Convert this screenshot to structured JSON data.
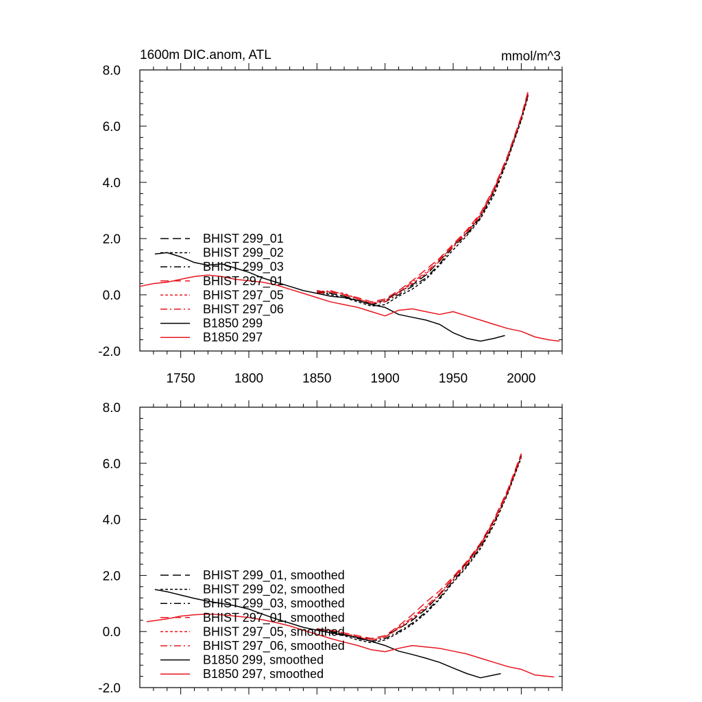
{
  "chart_data": [
    {
      "type": "line",
      "title": "1600m DIC.anom, ATL",
      "units": "mmol/m^3",
      "xlim": [
        1720,
        2030
      ],
      "ylim": [
        -2.0,
        8.0
      ],
      "xticks": [
        1750,
        1800,
        1850,
        1900,
        1950,
        2000
      ],
      "xtick_labels": [
        "1750",
        "1800",
        "1850",
        "1900",
        "1950",
        "2000"
      ],
      "yticks": [
        -2,
        0,
        2,
        4,
        6,
        8
      ],
      "ytick_labels": [
        "-2.0",
        "0.0",
        "2.0",
        "4.0",
        "6.0",
        "8.0"
      ],
      "legend_position": "left",
      "series": [
        {
          "name": "BHIST 299_01",
          "color": "#000000",
          "dash": "long-dash",
          "x": [
            1850,
            1860,
            1870,
            1880,
            1890,
            1900,
            1910,
            1920,
            1930,
            1940,
            1950,
            1960,
            1970,
            1980,
            1990,
            2000,
            2005
          ],
          "values": [
            0.15,
            0.05,
            -0.05,
            -0.2,
            -0.3,
            -0.2,
            0.1,
            0.35,
            0.7,
            1.2,
            1.75,
            2.2,
            2.8,
            3.7,
            4.9,
            6.3,
            7.1
          ]
        },
        {
          "name": "BHIST 299_02",
          "color": "#000000",
          "dash": "short-dash",
          "x": [
            1850,
            1860,
            1870,
            1880,
            1890,
            1900,
            1910,
            1920,
            1930,
            1940,
            1950,
            1960,
            1970,
            1980,
            1990,
            2000,
            2005
          ],
          "values": [
            0.1,
            0.0,
            -0.1,
            -0.25,
            -0.4,
            -0.35,
            -0.05,
            0.2,
            0.55,
            1.05,
            1.6,
            2.1,
            2.7,
            3.55,
            4.8,
            6.2,
            7.05
          ]
        },
        {
          "name": "BHIST 299_03",
          "color": "#000000",
          "dash": "dash-dot",
          "x": [
            1850,
            1860,
            1870,
            1880,
            1890,
            1900,
            1910,
            1920,
            1930,
            1940,
            1950,
            1960,
            1970,
            1980,
            1990,
            2000,
            2005
          ],
          "values": [
            0.1,
            0.05,
            -0.05,
            -0.2,
            -0.35,
            -0.25,
            0.0,
            0.3,
            0.6,
            1.1,
            1.7,
            2.15,
            2.75,
            3.65,
            4.85,
            6.25,
            7.1
          ]
        },
        {
          "name": "BHIST 297_01",
          "color": "#e8141c",
          "dash": "long-dash",
          "x": [
            1850,
            1860,
            1870,
            1880,
            1890,
            1900,
            1910,
            1920,
            1930,
            1940,
            1950,
            1960,
            1970,
            1980,
            1990,
            2000,
            2005
          ],
          "values": [
            0.05,
            0.1,
            0.0,
            -0.1,
            -0.25,
            -0.15,
            0.15,
            0.5,
            0.9,
            1.3,
            1.8,
            2.3,
            2.9,
            3.8,
            4.95,
            6.35,
            7.25
          ]
        },
        {
          "name": "BHIST 297_05",
          "color": "#e8141c",
          "dash": "short-dash",
          "x": [
            1850,
            1860,
            1870,
            1880,
            1890,
            1900,
            1910,
            1920,
            1930,
            1940,
            1950,
            1960,
            1970,
            1980,
            1990,
            2000,
            2005
          ],
          "values": [
            0.15,
            0.1,
            0.05,
            -0.15,
            -0.3,
            -0.2,
            0.05,
            0.4,
            0.75,
            1.2,
            1.7,
            2.2,
            2.8,
            3.7,
            4.9,
            6.3,
            7.2
          ]
        },
        {
          "name": "BHIST 297_06",
          "color": "#e8141c",
          "dash": "dash-dot",
          "x": [
            1850,
            1860,
            1870,
            1880,
            1890,
            1900,
            1910,
            1920,
            1930,
            1940,
            1950,
            1960,
            1970,
            1980,
            1990,
            2000,
            2005
          ],
          "values": [
            0.1,
            0.15,
            0.0,
            -0.15,
            -0.3,
            -0.25,
            0.1,
            0.45,
            0.8,
            1.25,
            1.75,
            2.25,
            2.85,
            3.75,
            4.9,
            6.3,
            7.15
          ]
        },
        {
          "name": "B1850 299",
          "color": "#000000",
          "dash": "solid",
          "x": [
            1731,
            1740,
            1750,
            1760,
            1770,
            1780,
            1790,
            1800,
            1810,
            1820,
            1830,
            1840,
            1850,
            1860,
            1870,
            1880,
            1890,
            1900,
            1910,
            1920,
            1930,
            1940,
            1950,
            1960,
            1970,
            1980,
            1988
          ],
          "values": [
            1.45,
            1.5,
            1.35,
            1.15,
            1.05,
            1.1,
            0.95,
            0.8,
            0.6,
            0.45,
            0.3,
            0.15,
            0.05,
            -0.05,
            -0.1,
            -0.2,
            -0.35,
            -0.45,
            -0.7,
            -0.8,
            -0.9,
            -1.05,
            -1.35,
            -1.55,
            -1.65,
            -1.55,
            -1.45
          ]
        },
        {
          "name": "B1850 297",
          "color": "#e8141c",
          "dash": "solid",
          "x": [
            1720,
            1730,
            1740,
            1750,
            1760,
            1770,
            1780,
            1790,
            1800,
            1810,
            1820,
            1830,
            1840,
            1850,
            1860,
            1870,
            1880,
            1890,
            1900,
            1910,
            1920,
            1930,
            1940,
            1950,
            1960,
            1970,
            1980,
            1990,
            2000,
            2010,
            2020,
            2028
          ],
          "values": [
            0.3,
            0.4,
            0.45,
            0.55,
            0.65,
            0.7,
            0.65,
            0.55,
            0.5,
            0.45,
            0.35,
            0.2,
            0.05,
            -0.1,
            -0.25,
            -0.35,
            -0.45,
            -0.6,
            -0.75,
            -0.55,
            -0.5,
            -0.6,
            -0.7,
            -0.6,
            -0.75,
            -0.9,
            -1.05,
            -1.2,
            -1.3,
            -1.5,
            -1.6,
            -1.65
          ]
        }
      ]
    },
    {
      "type": "line",
      "title": "",
      "xlim": [
        1720,
        2030
      ],
      "ylim": [
        -2.0,
        8.0
      ],
      "xticks": [
        1750,
        1800,
        1850,
        1900,
        1950,
        2000
      ],
      "yticks": [
        -2,
        0,
        2,
        4,
        6,
        8
      ],
      "ytick_labels": [
        "-2.0",
        "0.0",
        "2.0",
        "4.0",
        "6.0",
        "8.0"
      ],
      "legend_position": "left",
      "series": [
        {
          "name": "BHIST 299_01, smoothed",
          "color": "#000000",
          "dash": "long-dash",
          "x": [
            1850,
            1860,
            1870,
            1880,
            1890,
            1900,
            1910,
            1920,
            1930,
            1940,
            1950,
            1960,
            1970,
            1980,
            1990,
            2000
          ],
          "values": [
            0.1,
            0.0,
            -0.1,
            -0.2,
            -0.25,
            -0.15,
            0.1,
            0.4,
            0.8,
            1.3,
            1.9,
            2.45,
            3.1,
            3.95,
            5.0,
            6.3
          ]
        },
        {
          "name": "BHIST 299_02, smoothed",
          "color": "#000000",
          "dash": "short-dash",
          "x": [
            1850,
            1860,
            1870,
            1880,
            1890,
            1900,
            1910,
            1920,
            1930,
            1940,
            1950,
            1960,
            1970,
            1980,
            1990,
            2000
          ],
          "values": [
            0.05,
            -0.05,
            -0.15,
            -0.3,
            -0.4,
            -0.3,
            -0.05,
            0.25,
            0.65,
            1.15,
            1.75,
            2.3,
            2.95,
            3.8,
            4.9,
            6.2
          ]
        },
        {
          "name": "BHIST 299_03, smoothed",
          "color": "#000000",
          "dash": "dash-dot",
          "x": [
            1850,
            1860,
            1870,
            1880,
            1890,
            1900,
            1910,
            1920,
            1930,
            1940,
            1950,
            1960,
            1970,
            1980,
            1990,
            2000
          ],
          "values": [
            0.1,
            0.0,
            -0.1,
            -0.25,
            -0.35,
            -0.25,
            0.0,
            0.3,
            0.7,
            1.2,
            1.8,
            2.35,
            3.0,
            3.85,
            4.95,
            6.25
          ]
        },
        {
          "name": "BHIST 297_01, smoothed",
          "color": "#e8141c",
          "dash": "long-dash",
          "x": [
            1850,
            1860,
            1870,
            1880,
            1890,
            1900,
            1910,
            1920,
            1930,
            1940,
            1950,
            1960,
            1970,
            1980,
            1990,
            2000
          ],
          "values": [
            0.05,
            0.05,
            -0.05,
            -0.15,
            -0.25,
            -0.15,
            0.2,
            0.6,
            1.05,
            1.45,
            1.95,
            2.5,
            3.15,
            4.0,
            5.05,
            6.35
          ]
        },
        {
          "name": "BHIST 297_05, smoothed",
          "color": "#e8141c",
          "dash": "short-dash",
          "x": [
            1850,
            1860,
            1870,
            1880,
            1890,
            1900,
            1910,
            1920,
            1930,
            1940,
            1950,
            1960,
            1970,
            1980,
            1990,
            2000
          ],
          "values": [
            0.1,
            0.05,
            -0.05,
            -0.2,
            -0.3,
            -0.2,
            0.1,
            0.45,
            0.85,
            1.3,
            1.85,
            2.4,
            3.05,
            3.9,
            4.95,
            6.25
          ]
        },
        {
          "name": "BHIST 297_06, smoothed",
          "color": "#e8141c",
          "dash": "dash-dot",
          "x": [
            1850,
            1860,
            1870,
            1880,
            1890,
            1900,
            1910,
            1920,
            1930,
            1940,
            1950,
            1960,
            1970,
            1980,
            1990,
            2000
          ],
          "values": [
            0.05,
            0.05,
            -0.1,
            -0.2,
            -0.3,
            -0.2,
            0.15,
            0.5,
            0.9,
            1.35,
            1.9,
            2.45,
            3.1,
            3.95,
            5.0,
            6.3
          ]
        },
        {
          "name": "B1850 299, smoothed",
          "color": "#000000",
          "dash": "solid",
          "x": [
            1731,
            1740,
            1750,
            1760,
            1770,
            1780,
            1790,
            1800,
            1810,
            1820,
            1830,
            1840,
            1850,
            1860,
            1870,
            1880,
            1890,
            1900,
            1910,
            1920,
            1930,
            1940,
            1950,
            1960,
            1970,
            1980,
            1985
          ],
          "values": [
            1.5,
            1.42,
            1.3,
            1.18,
            1.08,
            1.0,
            0.92,
            0.8,
            0.62,
            0.45,
            0.3,
            0.15,
            0.05,
            -0.05,
            -0.12,
            -0.22,
            -0.35,
            -0.5,
            -0.7,
            -0.82,
            -0.95,
            -1.1,
            -1.3,
            -1.5,
            -1.65,
            -1.55,
            -1.5
          ]
        },
        {
          "name": "B1850 297, smoothed",
          "color": "#e8141c",
          "dash": "solid",
          "x": [
            1725,
            1740,
            1750,
            1760,
            1770,
            1780,
            1790,
            1800,
            1810,
            1820,
            1830,
            1840,
            1850,
            1860,
            1870,
            1880,
            1890,
            1900,
            1910,
            1920,
            1930,
            1940,
            1950,
            1960,
            1970,
            1980,
            1990,
            2000,
            2010,
            2020,
            2024
          ],
          "values": [
            0.35,
            0.45,
            0.55,
            0.6,
            0.62,
            0.6,
            0.55,
            0.5,
            0.42,
            0.32,
            0.2,
            0.05,
            -0.1,
            -0.25,
            -0.38,
            -0.5,
            -0.65,
            -0.72,
            -0.6,
            -0.5,
            -0.55,
            -0.6,
            -0.7,
            -0.8,
            -0.95,
            -1.1,
            -1.25,
            -1.35,
            -1.55,
            -1.6,
            -1.62
          ]
        }
      ]
    }
  ]
}
